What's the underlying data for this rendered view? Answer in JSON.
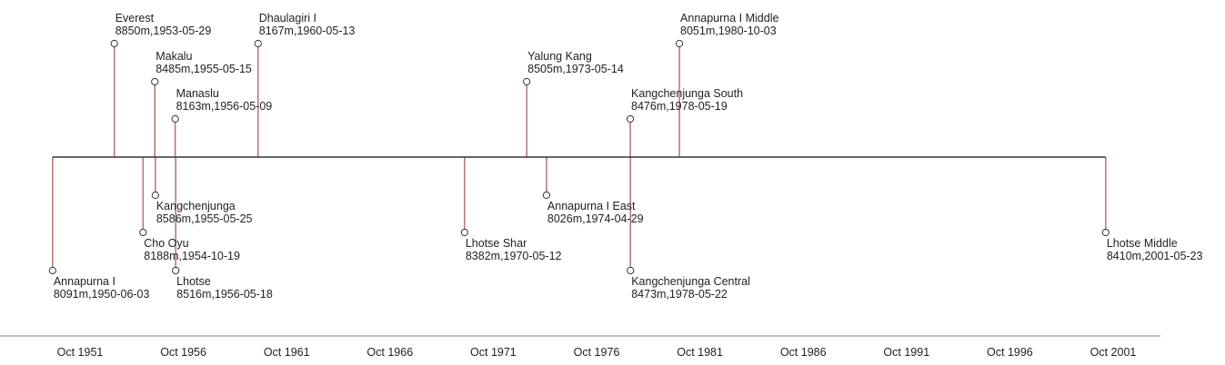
{
  "chart_data": {
    "type": "timeline",
    "title": "",
    "events": [
      {
        "name": "Annapurna I",
        "detail": "8091m,1950-06-03",
        "date": "1950-06-03",
        "side": "below",
        "level": 3
      },
      {
        "name": "Everest",
        "detail": "8850m,1953-05-29",
        "date": "1953-05-29",
        "side": "above",
        "level": 3
      },
      {
        "name": "Cho Oyu",
        "detail": "8188m,1954-10-19",
        "date": "1954-10-19",
        "side": "below",
        "level": 2
      },
      {
        "name": "Makalu",
        "detail": "8485m,1955-05-15",
        "date": "1955-05-15",
        "side": "above",
        "level": 2
      },
      {
        "name": "Kangchenjunga",
        "detail": "8586m,1955-05-25",
        "date": "1955-05-25",
        "side": "below",
        "level": 1
      },
      {
        "name": "Manaslu",
        "detail": "8163m,1956-05-09",
        "date": "1956-05-09",
        "side": "above",
        "level": 1
      },
      {
        "name": "Lhotse",
        "detail": "8516m,1956-05-18",
        "date": "1956-05-18",
        "side": "below",
        "level": 3
      },
      {
        "name": "Dhaulagiri I",
        "detail": "8167m,1960-05-13",
        "date": "1960-05-13",
        "side": "above",
        "level": 3
      },
      {
        "name": "Lhotse Shar",
        "detail": "8382m,1970-05-12",
        "date": "1970-05-12",
        "side": "below",
        "level": 2
      },
      {
        "name": "Yalung Kang",
        "detail": "8505m,1973-05-14",
        "date": "1973-05-14",
        "side": "above",
        "level": 2
      },
      {
        "name": "Annapurna I East",
        "detail": "8026m,1974-04-29",
        "date": "1974-04-29",
        "side": "below",
        "level": 1
      },
      {
        "name": "Kangchenjunga South",
        "detail": "8476m,1978-05-19",
        "date": "1978-05-19",
        "side": "above",
        "level": 1
      },
      {
        "name": "Kangchenjunga Central",
        "detail": "8473m,1978-05-22",
        "date": "1978-05-22",
        "side": "below",
        "level": 3
      },
      {
        "name": "Annapurna I Middle",
        "detail": "8051m,1980-10-03",
        "date": "1980-10-03",
        "side": "above",
        "level": 3
      },
      {
        "name": "Lhotse Middle",
        "detail": "8410m,2001-05-23",
        "date": "2001-05-23",
        "side": "below",
        "level": 2
      }
    ],
    "x_tick_labels": [
      "Oct 1951",
      "Oct 1956",
      "Oct 1961",
      "Oct 1966",
      "Oct 1971",
      "Oct 1976",
      "Oct 1981",
      "Oct 1986",
      "Oct 1991",
      "Oct 1996",
      "Oct 2001"
    ],
    "colors": {
      "stem": "#b87272",
      "baseline": "#333333",
      "axis": "#999999",
      "marker_fill": "#ffffff",
      "marker_stroke": "#333333",
      "text": "#222222"
    }
  }
}
